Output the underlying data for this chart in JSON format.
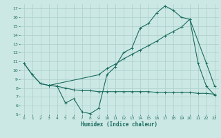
{
  "title": "",
  "xlabel": "Humidex (Indice chaleur)",
  "bg_color": "#cce8e4",
  "line_color": "#1a6b60",
  "grid_color": "#aacfcb",
  "xlim": [
    -0.5,
    23.5
  ],
  "ylim": [
    5,
    17.5
  ],
  "xtick_vals": [
    0,
    1,
    2,
    3,
    4,
    5,
    6,
    7,
    8,
    9,
    10,
    11,
    12,
    13,
    14,
    15,
    16,
    17,
    18,
    19,
    20,
    21,
    22,
    23
  ],
  "ytick_vals": [
    5,
    6,
    7,
    8,
    9,
    10,
    11,
    12,
    13,
    14,
    15,
    16,
    17
  ],
  "line1_x": [
    0,
    1,
    2,
    3,
    4,
    5,
    6,
    7,
    8,
    9,
    10,
    11,
    12,
    13,
    14,
    15,
    16,
    17,
    18,
    19,
    20,
    21,
    22,
    23
  ],
  "line1_y": [
    10.8,
    9.5,
    8.5,
    8.3,
    8.2,
    6.3,
    6.8,
    5.3,
    5.1,
    5.7,
    9.5,
    10.4,
    12.0,
    12.5,
    14.8,
    15.3,
    16.5,
    17.3,
    16.8,
    16.0,
    15.8,
    10.8,
    8.2,
    7.2
  ],
  "line2_x": [
    0,
    1,
    2,
    3,
    9,
    10,
    11,
    12,
    13,
    14,
    15,
    16,
    17,
    18,
    19,
    20,
    22,
    23
  ],
  "line2_y": [
    10.8,
    9.5,
    8.5,
    8.3,
    9.5,
    10.2,
    10.7,
    11.3,
    11.8,
    12.3,
    12.8,
    13.3,
    13.9,
    14.4,
    14.9,
    15.8,
    10.8,
    8.2
  ],
  "line3_x": [
    3,
    4,
    5,
    6,
    7,
    8,
    9,
    10,
    11,
    12,
    13,
    14,
    15,
    16,
    17,
    18,
    19,
    20,
    21,
    22,
    23
  ],
  "line3_y": [
    8.3,
    8.2,
    8.0,
    7.8,
    7.7,
    7.7,
    7.6,
    7.6,
    7.6,
    7.6,
    7.6,
    7.6,
    7.6,
    7.5,
    7.5,
    7.5,
    7.5,
    7.5,
    7.4,
    7.4,
    7.3
  ],
  "lw": 0.8,
  "ms": 2.5,
  "mew": 0.7
}
